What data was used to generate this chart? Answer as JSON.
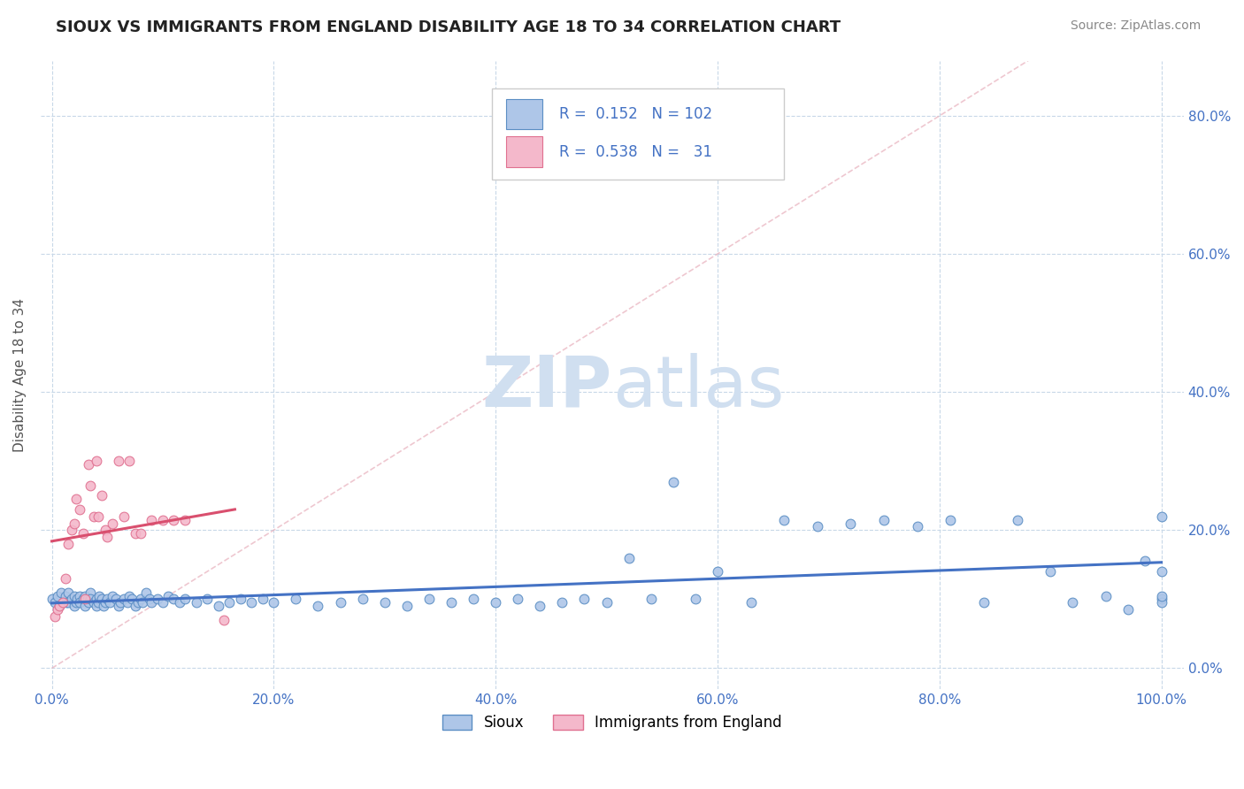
{
  "title": "SIOUX VS IMMIGRANTS FROM ENGLAND DISABILITY AGE 18 TO 34 CORRELATION CHART",
  "source_text": "Source: ZipAtlas.com",
  "ylabel": "Disability Age 18 to 34",
  "xlim": [
    -0.01,
    1.02
  ],
  "ylim": [
    -0.03,
    0.88
  ],
  "xtick_labels": [
    "0.0%",
    "20.0%",
    "40.0%",
    "60.0%",
    "80.0%",
    "100.0%"
  ],
  "xtick_values": [
    0.0,
    0.2,
    0.4,
    0.6,
    0.8,
    1.0
  ],
  "ytick_labels": [
    "0.0%",
    "20.0%",
    "40.0%",
    "60.0%",
    "80.0%"
  ],
  "ytick_values": [
    0.0,
    0.2,
    0.4,
    0.6,
    0.8
  ],
  "sioux_color": "#aec6e8",
  "england_color": "#f4b8cb",
  "sioux_edge_color": "#5b8ec4",
  "england_edge_color": "#e07090",
  "sioux_line_color": "#4472c4",
  "england_line_color": "#d94f6e",
  "diag_line_color": "#e8b0bc",
  "legend_color": "#4472c4",
  "watermark_color": "#d0dff0",
  "background_color": "#ffffff",
  "grid_color": "#c8d8e8",
  "sioux_R": 0.152,
  "sioux_N": 102,
  "england_R": 0.538,
  "england_N": 31,
  "sioux_x": [
    0.0,
    0.003,
    0.005,
    0.007,
    0.008,
    0.01,
    0.012,
    0.013,
    0.015,
    0.015,
    0.018,
    0.02,
    0.02,
    0.022,
    0.023,
    0.025,
    0.025,
    0.028,
    0.03,
    0.03,
    0.032,
    0.033,
    0.035,
    0.035,
    0.038,
    0.04,
    0.04,
    0.042,
    0.043,
    0.045,
    0.047,
    0.048,
    0.05,
    0.052,
    0.055,
    0.058,
    0.06,
    0.062,
    0.065,
    0.068,
    0.07,
    0.072,
    0.075,
    0.078,
    0.08,
    0.082,
    0.085,
    0.088,
    0.09,
    0.095,
    0.1,
    0.105,
    0.11,
    0.115,
    0.12,
    0.13,
    0.14,
    0.15,
    0.16,
    0.17,
    0.18,
    0.19,
    0.2,
    0.22,
    0.24,
    0.26,
    0.28,
    0.3,
    0.32,
    0.34,
    0.36,
    0.38,
    0.4,
    0.42,
    0.44,
    0.46,
    0.48,
    0.5,
    0.52,
    0.54,
    0.56,
    0.58,
    0.6,
    0.63,
    0.66,
    0.69,
    0.72,
    0.75,
    0.78,
    0.81,
    0.84,
    0.87,
    0.9,
    0.92,
    0.95,
    0.97,
    0.985,
    1.0,
    1.0,
    1.0,
    1.0,
    1.0
  ],
  "sioux_y": [
    0.1,
    0.095,
    0.105,
    0.09,
    0.11,
    0.095,
    0.105,
    0.095,
    0.095,
    0.11,
    0.1,
    0.09,
    0.105,
    0.095,
    0.1,
    0.105,
    0.095,
    0.1,
    0.09,
    0.105,
    0.1,
    0.095,
    0.11,
    0.1,
    0.095,
    0.09,
    0.1,
    0.095,
    0.105,
    0.1,
    0.09,
    0.095,
    0.1,
    0.095,
    0.105,
    0.1,
    0.09,
    0.095,
    0.1,
    0.095,
    0.105,
    0.1,
    0.09,
    0.095,
    0.1,
    0.095,
    0.11,
    0.1,
    0.095,
    0.1,
    0.095,
    0.105,
    0.1,
    0.095,
    0.1,
    0.095,
    0.1,
    0.09,
    0.095,
    0.1,
    0.095,
    0.1,
    0.095,
    0.1,
    0.09,
    0.095,
    0.1,
    0.095,
    0.09,
    0.1,
    0.095,
    0.1,
    0.095,
    0.1,
    0.09,
    0.095,
    0.1,
    0.095,
    0.16,
    0.1,
    0.27,
    0.1,
    0.14,
    0.095,
    0.215,
    0.205,
    0.21,
    0.215,
    0.205,
    0.215,
    0.095,
    0.215,
    0.14,
    0.095,
    0.105,
    0.085,
    0.155,
    0.1,
    0.22,
    0.14,
    0.095,
    0.105
  ],
  "england_x": [
    0.003,
    0.005,
    0.007,
    0.01,
    0.012,
    0.015,
    0.018,
    0.02,
    0.022,
    0.025,
    0.028,
    0.03,
    0.033,
    0.035,
    0.038,
    0.04,
    0.042,
    0.045,
    0.048,
    0.05,
    0.055,
    0.06,
    0.065,
    0.07,
    0.075,
    0.08,
    0.09,
    0.1,
    0.11,
    0.12,
    0.155
  ],
  "england_y": [
    0.075,
    0.085,
    0.09,
    0.095,
    0.13,
    0.18,
    0.2,
    0.21,
    0.245,
    0.23,
    0.195,
    0.1,
    0.295,
    0.265,
    0.22,
    0.3,
    0.22,
    0.25,
    0.2,
    0.19,
    0.21,
    0.3,
    0.22,
    0.3,
    0.195,
    0.195,
    0.215,
    0.215,
    0.215,
    0.215,
    0.07
  ]
}
